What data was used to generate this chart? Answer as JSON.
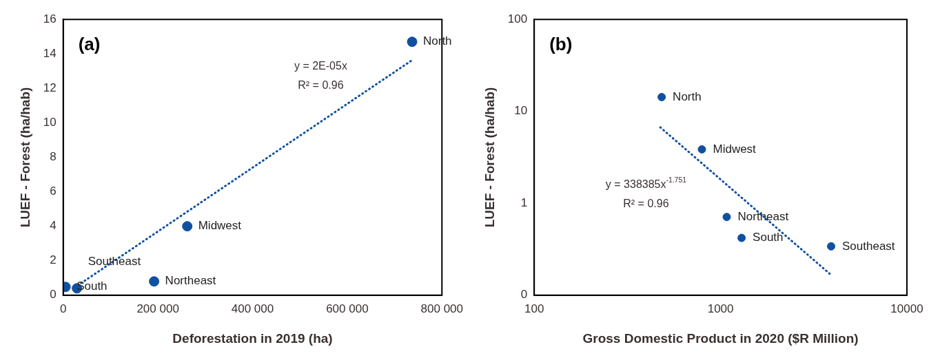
{
  "chart_data": [
    {
      "type": "scatter",
      "title": "(a)",
      "xlabel": "Deforestation in 2019 (ha)",
      "ylabel": "LUEF - Forest (ha/hab)",
      "xlim": [
        0,
        800000
      ],
      "ylim": [
        0,
        16
      ],
      "xticks": [
        0,
        {
          "value": 200000,
          "label": "200 000"
        },
        {
          "value": 400000,
          "label": "400 000"
        },
        {
          "value": 600000,
          "label": "600 000"
        },
        {
          "value": 800000,
          "label": "800 000"
        }
      ],
      "yticks": [
        0,
        2,
        4,
        6,
        8,
        10,
        12,
        14,
        16
      ],
      "grid": false,
      "legend": false,
      "marker": "circle",
      "series": [
        {
          "color": "#1050a0",
          "x": [
            737000,
            262000,
            192000,
            5000,
            29000
          ],
          "values": [
            14.7,
            4.0,
            0.8,
            0.48,
            0.4
          ]
        },
        {
          "type": "line",
          "line_style": "dotted",
          "marker": "none",
          "color": "#1050a0",
          "x": [
            38000,
            735000
          ],
          "values": [
            0.7,
            13.6
          ]
        }
      ],
      "annotations": [
        "y = 2E-05x",
        "R² = 0.96",
        {
          "text": "North",
          "x": 737000,
          "y": 14.7
        },
        {
          "text": "Midwest",
          "x": 262000,
          "y": 4.0
        },
        {
          "text": "Northeast",
          "x": 192000,
          "y": 0.8
        },
        {
          "text": "South",
          "x": 5000,
          "y": 0.48
        },
        {
          "text": "Southeast",
          "x": 29000,
          "y": 0.4
        }
      ]
    },
    {
      "type": "scatter",
      "title": "(b)",
      "xlabel": "Gross Domestic Product in 2020 ($R Million)",
      "ylabel": "LUEF - Forest (ha/hab)",
      "log": "xy",
      "xlim": [
        100,
        10000
      ],
      "ylim": [
        0.1,
        100
      ],
      "xticks": [
        100,
        1000,
        10000
      ],
      "yticks": [
        {
          "value": 0.1,
          "label": "0"
        },
        1,
        10,
        100
      ],
      "grid": false,
      "legend": false,
      "marker": "circle",
      "series": [
        {
          "color": "#1050a0",
          "x": [
            483,
            794,
            1079,
            1297,
            3920
          ],
          "values": [
            14.3,
            3.86,
            0.71,
            0.42,
            0.34
          ]
        },
        {
          "type": "line",
          "line_style": "dotted",
          "marker": "none",
          "color": "#1050a0",
          "x": [
            475,
            3866
          ],
          "values": [
            6.7,
            0.17
          ]
        }
      ],
      "annotations": [
        "y = 338385x$^{-1.751}$",
        "R² = 0.96",
        {
          "text": "North",
          "x": 483,
          "y": 14.3
        },
        {
          "text": "Midwest",
          "x": 794,
          "y": 3.86
        },
        {
          "text": "Northeast",
          "x": 1079,
          "y": 0.71
        },
        {
          "text": "South",
          "x": 1297,
          "y": 0.42
        },
        {
          "text": "Southeast",
          "x": 3920,
          "y": 0.34
        }
      ]
    }
  ]
}
